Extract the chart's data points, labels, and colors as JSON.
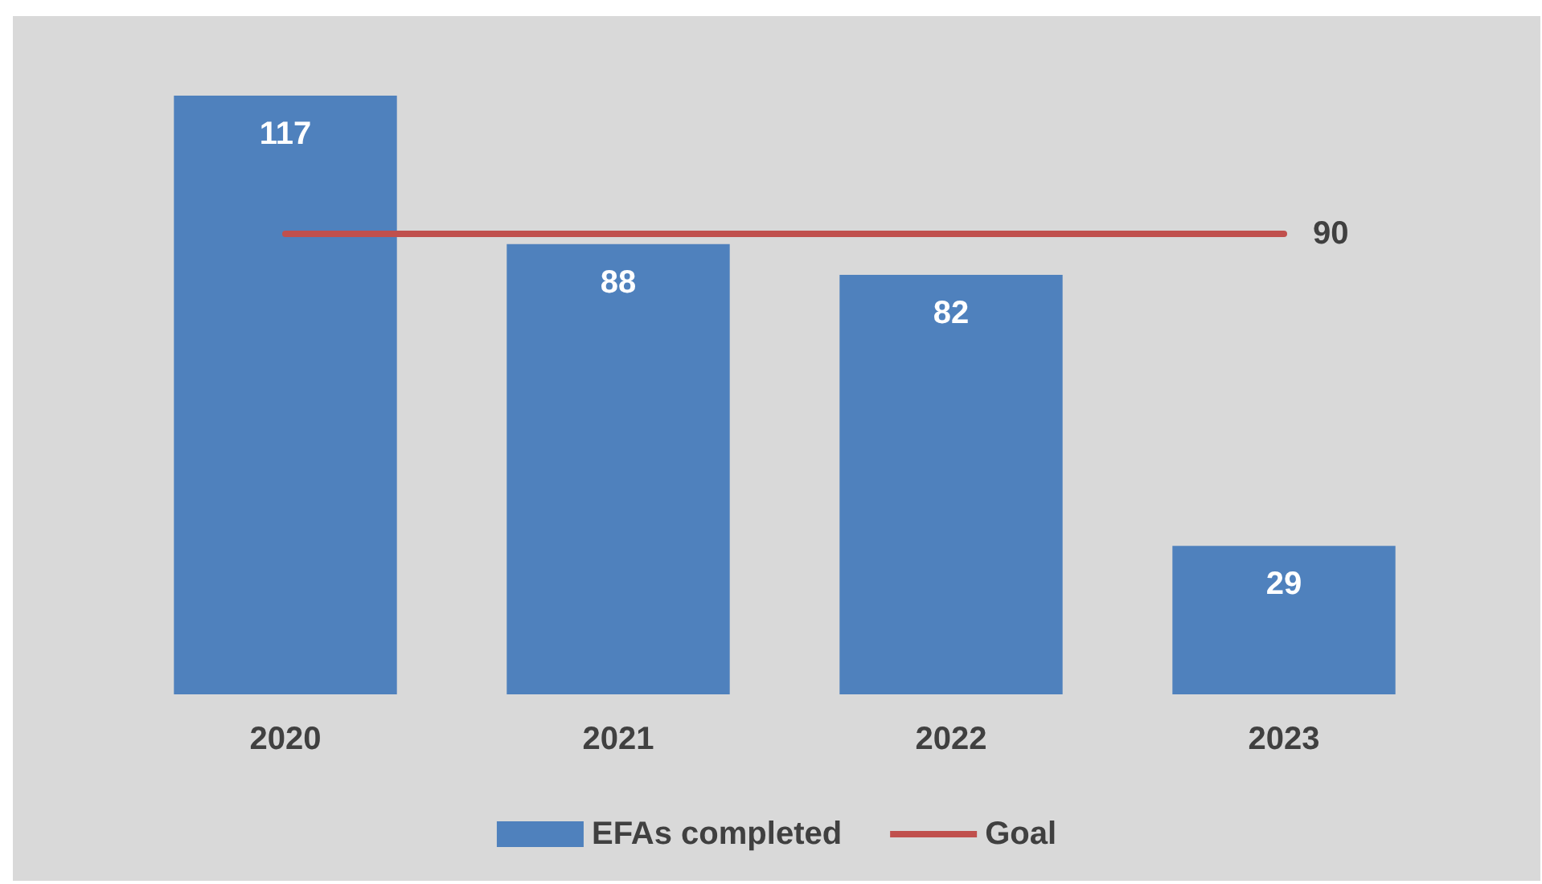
{
  "chart_data": {
    "type": "bar",
    "categories": [
      "2020",
      "2021",
      "2022",
      "2023"
    ],
    "series": [
      {
        "name": "EFAs completed",
        "color": "#4f81bd",
        "values": [
          117,
          88,
          82,
          29
        ],
        "value_labels": [
          "117",
          "88",
          "82",
          "29"
        ]
      },
      {
        "name": "Goal",
        "type": "line",
        "color": "#c0504d",
        "values": [
          90,
          90,
          90,
          90
        ],
        "value_labels": [
          null,
          null,
          null,
          "90"
        ],
        "marker": "none"
      }
    ],
    "legend": "bottom",
    "grid": false
  }
}
